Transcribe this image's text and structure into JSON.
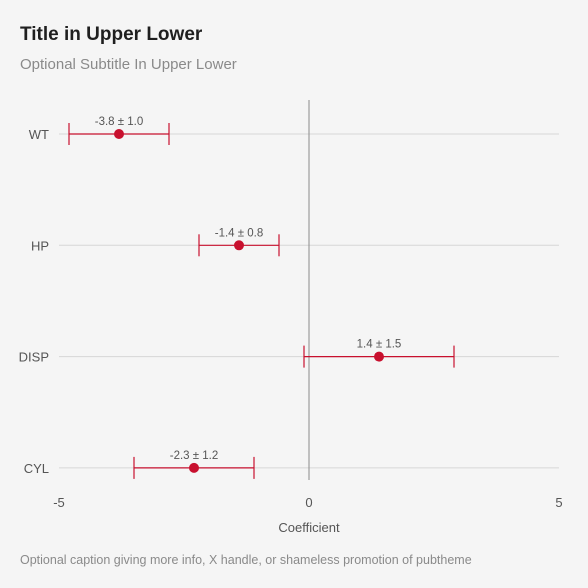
{
  "title": "Title in Upper Lower",
  "subtitle": "Optional Subtitle In Upper Lower",
  "caption": "Optional caption giving more info, X handle, or shameless promotion of pubtheme",
  "chart_data": {
    "type": "scatter",
    "orientation": "horizontal",
    "xlabel": "Coefficient",
    "xlim": [
      -5,
      5
    ],
    "xticks": [
      -5,
      0,
      5
    ],
    "categories": [
      "WT",
      "HP",
      "DISP",
      "CYL"
    ],
    "series": [
      {
        "points": [
          {
            "category": "WT",
            "estimate": -3.8,
            "error": 1.0,
            "label": "-3.8 ± 1.0"
          },
          {
            "category": "HP",
            "estimate": -1.4,
            "error": 0.8,
            "label": "-1.4 ± 0.8"
          },
          {
            "category": "DISP",
            "estimate": 1.4,
            "error": 1.5,
            "label": "1.4 ± 1.5"
          },
          {
            "category": "CYL",
            "estimate": -2.3,
            "error": 1.2,
            "label": "-2.3 ± 1.2"
          }
        ]
      }
    ],
    "reference_line": 0,
    "grid": "horizontal",
    "colors": {
      "point": "#c8102e",
      "gridline": "#d6d6d6",
      "reference": "#8c8c8c",
      "tick_text": "#555555"
    }
  }
}
